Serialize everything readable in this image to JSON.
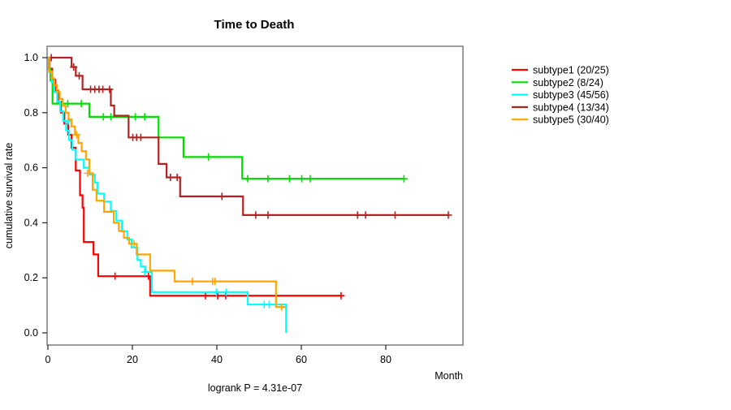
{
  "chart_data": {
    "type": "line",
    "subtype": "kaplan-meier-step",
    "title": "Time to Death",
    "xlabel": "Month",
    "ylabel": "cumulative survival rate",
    "footnote": "logrank P = 4.31e-07",
    "x_ticks": [
      {
        "v": 0,
        "label": "0"
      },
      {
        "v": 20,
        "label": "20"
      },
      {
        "v": 40,
        "label": "40"
      },
      {
        "v": 60,
        "label": "60"
      },
      {
        "v": 80,
        "label": "80"
      }
    ],
    "y_ticks": [
      {
        "v": 0.0,
        "label": "0.0"
      },
      {
        "v": 0.2,
        "label": "0.2"
      },
      {
        "v": 0.4,
        "label": "0.4"
      },
      {
        "v": 0.6,
        "label": "0.6"
      },
      {
        "v": 0.8,
        "label": "0.8"
      },
      {
        "v": 1.0,
        "label": "1.0"
      }
    ],
    "xlim": [
      0,
      98.3
    ],
    "ylim": [
      0,
      1
    ],
    "grid": false,
    "legend_position": "right-outside",
    "series": [
      {
        "name": "subtype1",
        "label": "subtype1 (20/25)",
        "color": "#ff0000",
        "steps": [
          [
            0,
            1.0
          ],
          [
            0.4,
            0.96
          ],
          [
            1.0,
            0.92
          ],
          [
            1.7,
            0.88
          ],
          [
            2.4,
            0.84
          ],
          [
            3.1,
            0.8
          ],
          [
            3.9,
            0.76
          ],
          [
            4.8,
            0.72
          ],
          [
            5.6,
            0.673
          ],
          [
            6.6,
            0.59
          ],
          [
            7.6,
            0.5
          ],
          [
            8.2,
            0.455
          ],
          [
            8.5,
            0.33
          ],
          [
            10.8,
            0.285
          ],
          [
            11.9,
            0.206
          ],
          [
            24.2,
            0.135
          ]
        ],
        "censors": [
          [
            15.9,
            0.206
          ],
          [
            23.8,
            0.206
          ],
          [
            37.3,
            0.135
          ],
          [
            40.2,
            0.135
          ],
          [
            42.1,
            0.135
          ],
          [
            69.4,
            0.135
          ]
        ],
        "end": 69.7
      },
      {
        "name": "subtype2",
        "label": "subtype2 (8/24)",
        "color": "#00dd00",
        "steps": [
          [
            0,
            1.0
          ],
          [
            0.2,
            0.958
          ],
          [
            0.6,
            0.917
          ],
          [
            1.1,
            0.833
          ],
          [
            9.8,
            0.785
          ],
          [
            26.2,
            0.71
          ],
          [
            32.1,
            0.639
          ],
          [
            46.0,
            0.56
          ]
        ],
        "censors": [
          [
            4.7,
            0.833
          ],
          [
            7.9,
            0.833
          ],
          [
            13.1,
            0.785
          ],
          [
            14.9,
            0.785
          ],
          [
            20.7,
            0.785
          ],
          [
            22.9,
            0.785
          ],
          [
            38.0,
            0.639
          ],
          [
            47.3,
            0.56
          ],
          [
            52.1,
            0.56
          ],
          [
            57.2,
            0.56
          ],
          [
            60.1,
            0.56
          ],
          [
            62.1,
            0.56
          ],
          [
            84.3,
            0.56
          ]
        ],
        "end": 84.5
      },
      {
        "name": "subtype3",
        "label": "subtype3 (45/56)",
        "color": "#00ffff",
        "steps": [
          [
            0,
            1.0
          ],
          [
            0.3,
            0.946
          ],
          [
            0.9,
            0.91
          ],
          [
            1.5,
            0.875
          ],
          [
            2.2,
            0.84
          ],
          [
            2.9,
            0.805
          ],
          [
            3.6,
            0.77
          ],
          [
            4.3,
            0.735
          ],
          [
            5.0,
            0.7
          ],
          [
            5.8,
            0.665
          ],
          [
            6.6,
            0.63
          ],
          [
            8.5,
            0.6
          ],
          [
            9.8,
            0.575
          ],
          [
            11.1,
            0.546
          ],
          [
            11.7,
            0.506
          ],
          [
            13.3,
            0.477
          ],
          [
            14.9,
            0.443
          ],
          [
            16.2,
            0.408
          ],
          [
            17.5,
            0.369
          ],
          [
            18.8,
            0.339
          ],
          [
            19.8,
            0.31
          ],
          [
            21.2,
            0.265
          ],
          [
            22.0,
            0.241
          ],
          [
            23.1,
            0.221
          ],
          [
            24.6,
            0.148
          ],
          [
            47.3,
            0.103
          ],
          [
            56.4,
            0.0
          ]
        ],
        "censors": [
          [
            4.8,
            0.77
          ],
          [
            22.9,
            0.221
          ],
          [
            39.9,
            0.148
          ],
          [
            42.2,
            0.148
          ],
          [
            51.2,
            0.103
          ],
          [
            52.4,
            0.103
          ]
        ],
        "end": 56.4
      },
      {
        "name": "subtype4",
        "label": "subtype4 (13/34)",
        "color": "#b22222",
        "steps": [
          [
            0,
            1.0
          ],
          [
            5.6,
            0.966
          ],
          [
            6.6,
            0.934
          ],
          [
            8.2,
            0.885
          ],
          [
            14.9,
            0.826
          ],
          [
            15.7,
            0.789
          ],
          [
            19.1,
            0.71
          ],
          [
            26.2,
            0.614
          ],
          [
            28.1,
            0.565
          ],
          [
            31.3,
            0.496
          ],
          [
            46.2,
            0.428
          ]
        ],
        "censors": [
          [
            0.8,
            1.0
          ],
          [
            6.1,
            0.966
          ],
          [
            7.4,
            0.934
          ],
          [
            10.1,
            0.885
          ],
          [
            11.1,
            0.885
          ],
          [
            12.1,
            0.885
          ],
          [
            13.0,
            0.885
          ],
          [
            14.6,
            0.885
          ],
          [
            20.1,
            0.71
          ],
          [
            21.0,
            0.71
          ],
          [
            22.0,
            0.71
          ],
          [
            29.0,
            0.565
          ],
          [
            30.6,
            0.565
          ],
          [
            41.2,
            0.496
          ],
          [
            49.2,
            0.428
          ],
          [
            52.1,
            0.428
          ],
          [
            73.3,
            0.428
          ],
          [
            75.2,
            0.428
          ],
          [
            82.2,
            0.428
          ],
          [
            94.8,
            0.428
          ]
        ],
        "end": 94.8
      },
      {
        "name": "subtype5",
        "label": "subtype5 (30/40)",
        "color": "#ffa500",
        "steps": [
          [
            0,
            1.0
          ],
          [
            0.3,
            0.95
          ],
          [
            0.9,
            0.925
          ],
          [
            1.5,
            0.9
          ],
          [
            2.1,
            0.875
          ],
          [
            2.8,
            0.85
          ],
          [
            3.5,
            0.825
          ],
          [
            4.2,
            0.8
          ],
          [
            4.9,
            0.775
          ],
          [
            5.6,
            0.75
          ],
          [
            6.4,
            0.72
          ],
          [
            7.2,
            0.69
          ],
          [
            8.0,
            0.66
          ],
          [
            9.0,
            0.63
          ],
          [
            9.8,
            0.58
          ],
          [
            10.6,
            0.52
          ],
          [
            11.5,
            0.48
          ],
          [
            13.3,
            0.44
          ],
          [
            15.6,
            0.4
          ],
          [
            16.8,
            0.37
          ],
          [
            18.0,
            0.345
          ],
          [
            19.2,
            0.324
          ],
          [
            21.0,
            0.285
          ],
          [
            24.2,
            0.226
          ],
          [
            30.0,
            0.187
          ],
          [
            54.0,
            0.094
          ]
        ],
        "censors": [
          [
            6.8,
            0.72
          ],
          [
            9.4,
            0.58
          ],
          [
            20.4,
            0.324
          ],
          [
            34.2,
            0.187
          ],
          [
            39.0,
            0.187
          ],
          [
            39.6,
            0.187
          ],
          [
            55.3,
            0.094
          ]
        ],
        "end": 56.3
      }
    ]
  }
}
